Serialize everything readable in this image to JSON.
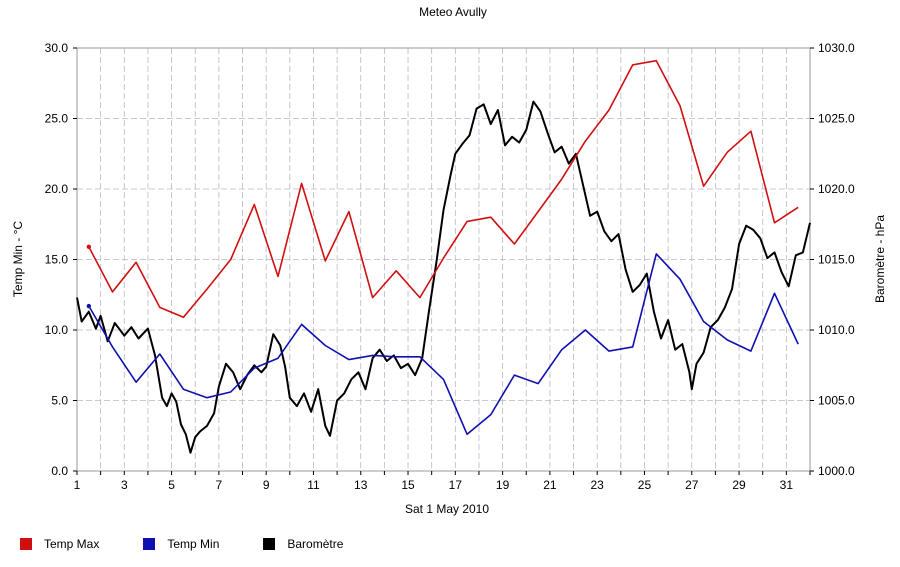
{
  "chart_data": {
    "type": "line",
    "title": "Meteo  Avully",
    "xlabel": "Sat 1 May 2010",
    "ylabel_left": "Temp Min - °C",
    "ylabel_right": "Baromètre - hPa",
    "xlim": [
      1,
      32
    ],
    "ylim_left": [
      0,
      30
    ],
    "ylim_right": [
      1000,
      1030
    ],
    "x_ticks": [
      1,
      3,
      5,
      7,
      9,
      11,
      13,
      15,
      17,
      19,
      21,
      23,
      25,
      27,
      29,
      31
    ],
    "y_left_ticks": [
      "0.0",
      "5.0",
      "10.0",
      "15.0",
      "20.0",
      "25.0",
      "30.0"
    ],
    "y_right_ticks": [
      "1000.0",
      "1005.0",
      "1010.0",
      "1015.0",
      "1020.0",
      "1025.0",
      "1030.0"
    ],
    "grid": true,
    "legend_position": "bottom-left",
    "series": [
      {
        "name": "Temp Max",
        "color": "#d01010",
        "axis": "left",
        "x": [
          1.5,
          2.5,
          3.5,
          4.5,
          5.5,
          6.5,
          7.5,
          8.5,
          9.5,
          10.5,
          11.5,
          12.5,
          13.5,
          14.5,
          15.5,
          16.5,
          17.5,
          18.5,
          19.5,
          20.5,
          21.5,
          22.5,
          23.5,
          24.5,
          25.5,
          26.5,
          27.5,
          28.5,
          29.5,
          30.5,
          31.5
        ],
        "values": [
          15.9,
          12.7,
          14.8,
          11.6,
          10.9,
          12.9,
          15.0,
          18.9,
          13.8,
          20.4,
          14.9,
          18.4,
          12.3,
          14.2,
          12.3,
          15.1,
          17.7,
          18.0,
          16.1,
          18.4,
          20.7,
          23.4,
          25.6,
          28.8,
          29.1,
          25.9,
          20.2,
          22.6,
          24.1,
          17.6,
          18.7
        ]
      },
      {
        "name": "Temp Min",
        "color": "#1010b0",
        "axis": "left",
        "x": [
          1.5,
          2.5,
          3.5,
          4.5,
          5.5,
          6.5,
          7.5,
          8.5,
          9.5,
          10.5,
          11.5,
          12.5,
          13.5,
          14.5,
          15.5,
          16.5,
          17.5,
          18.5,
          19.5,
          20.5,
          21.5,
          22.5,
          23.5,
          24.5,
          25.5,
          26.5,
          27.5,
          28.5,
          29.5,
          30.5,
          31.5
        ],
        "values": [
          11.7,
          8.8,
          6.3,
          8.3,
          5.8,
          5.2,
          5.6,
          7.3,
          8.0,
          10.4,
          8.9,
          7.9,
          8.2,
          8.1,
          8.1,
          6.5,
          2.6,
          4.0,
          6.8,
          6.2,
          8.6,
          10.0,
          8.5,
          8.8,
          15.4,
          13.6,
          10.6,
          9.3,
          8.5,
          12.6,
          9.0
        ]
      },
      {
        "name": "Baromètre",
        "color": "#000000",
        "axis": "right",
        "x": [
          1.0,
          1.2,
          1.5,
          1.8,
          2.0,
          2.3,
          2.6,
          3.0,
          3.3,
          3.6,
          4.0,
          4.3,
          4.6,
          4.8,
          5.0,
          5.2,
          5.4,
          5.6,
          5.8,
          6.0,
          6.2,
          6.5,
          6.8,
          7.0,
          7.3,
          7.6,
          7.9,
          8.2,
          8.5,
          8.8,
          9.0,
          9.3,
          9.6,
          9.8,
          10.0,
          10.3,
          10.6,
          10.9,
          11.2,
          11.5,
          11.7,
          12.0,
          12.3,
          12.6,
          12.9,
          13.2,
          13.5,
          13.8,
          14.1,
          14.4,
          14.7,
          15.0,
          15.3,
          15.6,
          15.9,
          16.2,
          16.5,
          16.8,
          17.0,
          17.3,
          17.6,
          17.9,
          18.2,
          18.5,
          18.8,
          19.1,
          19.4,
          19.7,
          20.0,
          20.3,
          20.6,
          20.9,
          21.2,
          21.5,
          21.8,
          22.1,
          22.4,
          22.7,
          23.0,
          23.3,
          23.6,
          23.9,
          24.2,
          24.5,
          24.8,
          25.1,
          25.4,
          25.7,
          26.0,
          26.3,
          26.6,
          26.9,
          27.0,
          27.2,
          27.5,
          27.8,
          28.1,
          28.4,
          28.7,
          29.0,
          29.3,
          29.6,
          29.9,
          30.2,
          30.5,
          30.8,
          31.1,
          31.4,
          31.7,
          32.0
        ],
        "values": [
          1012.3,
          1010.6,
          1011.3,
          1010.1,
          1011.0,
          1009.2,
          1010.5,
          1009.6,
          1010.2,
          1009.4,
          1010.1,
          1008.2,
          1005.2,
          1004.6,
          1005.5,
          1004.9,
          1003.3,
          1002.6,
          1001.3,
          1002.4,
          1002.8,
          1003.2,
          1004.1,
          1006.0,
          1007.6,
          1007.0,
          1005.8,
          1006.8,
          1007.5,
          1007.0,
          1007.4,
          1009.7,
          1008.9,
          1007.4,
          1005.2,
          1004.6,
          1005.5,
          1004.2,
          1005.8,
          1003.2,
          1002.5,
          1005.0,
          1005.5,
          1006.5,
          1007.0,
          1005.8,
          1008.0,
          1008.6,
          1007.8,
          1008.2,
          1007.3,
          1007.6,
          1006.8,
          1008.0,
          1011.5,
          1014.8,
          1018.5,
          1021.0,
          1022.5,
          1023.2,
          1023.8,
          1025.7,
          1026.0,
          1024.6,
          1025.6,
          1023.1,
          1023.7,
          1023.3,
          1024.2,
          1026.2,
          1025.5,
          1024.0,
          1022.6,
          1023.0,
          1021.8,
          1022.5,
          1020.3,
          1018.1,
          1018.4,
          1017.0,
          1016.3,
          1016.8,
          1014.3,
          1012.7,
          1013.2,
          1014.0,
          1011.3,
          1009.4,
          1010.7,
          1008.6,
          1009.0,
          1007.0,
          1005.8,
          1007.6,
          1008.4,
          1010.2,
          1010.7,
          1011.6,
          1012.9,
          1016.1,
          1017.4,
          1017.1,
          1016.5,
          1015.1,
          1015.5,
          1014.1,
          1013.1,
          1015.3,
          1015.5,
          1017.6
        ]
      }
    ]
  }
}
